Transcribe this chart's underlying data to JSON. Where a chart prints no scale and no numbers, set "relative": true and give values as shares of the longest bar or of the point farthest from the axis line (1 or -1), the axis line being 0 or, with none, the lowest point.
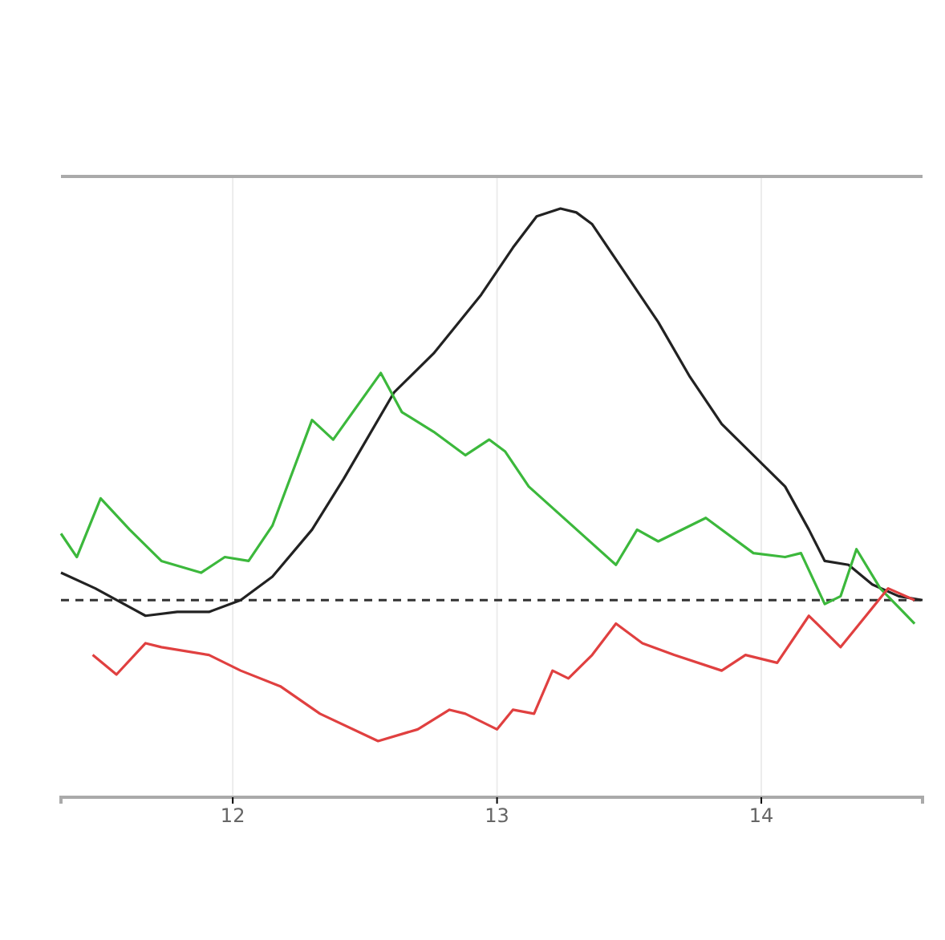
{
  "chart_data": {
    "type": "line",
    "relative": true,
    "xlim": [
      11.35,
      14.61
    ],
    "xticks": [
      12,
      13,
      14
    ],
    "grid": "x",
    "line_style": "solid",
    "marker": "none",
    "ref_lines": [
      {
        "axis": "y",
        "value": 0,
        "color": "#333333",
        "line_style": "dashed"
      }
    ],
    "series": [
      {
        "color": "#222222",
        "x": [
          11.35,
          11.48,
          11.67,
          11.79,
          11.91,
          12.03,
          12.15,
          12.3,
          12.42,
          12.61,
          12.76,
          12.94,
          13.06,
          13.15,
          13.24,
          13.3,
          13.36,
          13.48,
          13.61,
          13.73,
          13.85,
          13.97,
          14.09,
          14.18,
          14.24,
          14.33,
          14.42,
          14.52,
          14.61
        ],
        "values": [
          0.07,
          0.03,
          -0.04,
          -0.03,
          -0.03,
          0.0,
          0.06,
          0.18,
          0.31,
          0.53,
          0.63,
          0.78,
          0.9,
          0.98,
          1,
          0.99,
          0.96,
          0.84,
          0.71,
          0.57,
          0.45,
          0.37,
          0.29,
          0.18,
          0.1,
          0.09,
          0.04,
          0.01,
          0.0
        ]
      },
      {
        "color": "#3cb83c",
        "x": [
          11.35,
          11.41,
          11.5,
          11.61,
          11.73,
          11.88,
          11.97,
          12.06,
          12.15,
          12.3,
          12.38,
          12.56,
          12.64,
          12.76,
          12.88,
          12.97,
          13.03,
          13.12,
          13.45,
          13.53,
          13.61,
          13.79,
          13.97,
          14.09,
          14.15,
          14.24,
          14.3,
          14.36,
          14.45,
          14.58
        ],
        "values": [
          0.17,
          0.11,
          0.26,
          0.18,
          0.1,
          0.07,
          0.11,
          0.1,
          0.19,
          0.46,
          0.41,
          0.58,
          0.48,
          0.43,
          0.37,
          0.41,
          0.38,
          0.29,
          0.09,
          0.18,
          0.15,
          0.21,
          0.12,
          0.11,
          0.12,
          -0.01,
          0.01,
          0.13,
          0.03,
          -0.06
        ]
      },
      {
        "color": "#e04040",
        "x": [
          11.47,
          11.56,
          11.67,
          11.73,
          11.91,
          12.03,
          12.18,
          12.33,
          12.55,
          12.7,
          12.82,
          12.88,
          12.94,
          13.0,
          13.06,
          13.14,
          13.21,
          13.27,
          13.36,
          13.45,
          13.55,
          13.67,
          13.85,
          13.94,
          14.06,
          14.18,
          14.3,
          14.48,
          14.58
        ],
        "values": [
          -0.14,
          -0.19,
          -0.11,
          -0.12,
          -0.14,
          -0.18,
          -0.22,
          -0.29,
          -0.36,
          -0.33,
          -0.28,
          -0.29,
          -0.31,
          -0.33,
          -0.28,
          -0.29,
          -0.18,
          -0.2,
          -0.14,
          -0.06,
          -0.11,
          -0.14,
          -0.18,
          -0.14,
          -0.16,
          -0.04,
          -0.12,
          0.03,
          0.0
        ]
      }
    ]
  }
}
